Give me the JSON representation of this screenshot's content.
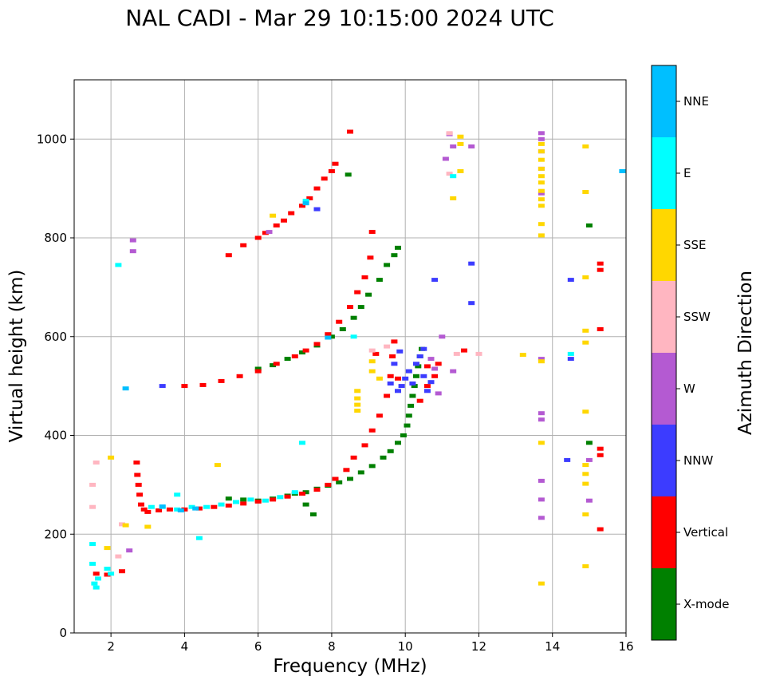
{
  "chart_data": {
    "type": "scatter",
    "title": "NAL CADI - Mar 29 10:15:00 2024 UTC",
    "xlabel": "Frequency (MHz)",
    "ylabel": "Virtual height (km)",
    "xlim": [
      1,
      16
    ],
    "ylim": [
      0,
      1120
    ],
    "xticks": [
      2,
      4,
      6,
      8,
      10,
      12,
      14,
      16
    ],
    "yticks": [
      0,
      200,
      400,
      600,
      800,
      1000
    ],
    "grid": true,
    "colorbar": {
      "label": "Azimuth Direction",
      "categories": [
        {
          "name": "X-mode",
          "color": "#008000"
        },
        {
          "name": "Vertical",
          "color": "#ff0000"
        },
        {
          "name": "NNW",
          "color": "#3c3cff"
        },
        {
          "name": "W",
          "color": "#b45ad2"
        },
        {
          "name": "SSW",
          "color": "#ffb6c1"
        },
        {
          "name": "SSE",
          "color": "#ffd700"
        },
        {
          "name": "E",
          "color": "#00ffff"
        },
        {
          "name": "NNE",
          "color": "#00bfff"
        }
      ]
    },
    "series": [
      {
        "name": "X-mode",
        "points": [
          [
            5.2,
            272
          ],
          [
            5.6,
            270
          ],
          [
            6.0,
            268
          ],
          [
            6.4,
            272
          ],
          [
            6.8,
            278
          ],
          [
            7.0,
            282
          ],
          [
            7.3,
            285
          ],
          [
            7.6,
            292
          ],
          [
            7.9,
            298
          ],
          [
            8.2,
            305
          ],
          [
            8.5,
            312
          ],
          [
            8.8,
            325
          ],
          [
            9.1,
            338
          ],
          [
            9.4,
            355
          ],
          [
            9.6,
            368
          ],
          [
            9.8,
            385
          ],
          [
            9.95,
            400
          ],
          [
            10.05,
            420
          ],
          [
            10.1,
            440
          ],
          [
            10.15,
            460
          ],
          [
            10.2,
            480
          ],
          [
            10.25,
            500
          ],
          [
            10.3,
            520
          ],
          [
            10.35,
            540
          ],
          [
            10.4,
            560
          ],
          [
            10.45,
            575
          ],
          [
            6.0,
            535
          ],
          [
            6.4,
            542
          ],
          [
            6.8,
            555
          ],
          [
            7.2,
            568
          ],
          [
            7.6,
            582
          ],
          [
            8.0,
            600
          ],
          [
            8.3,
            615
          ],
          [
            8.6,
            638
          ],
          [
            8.8,
            660
          ],
          [
            9.0,
            685
          ],
          [
            9.3,
            715
          ],
          [
            9.5,
            745
          ],
          [
            9.7,
            765
          ],
          [
            9.8,
            780
          ],
          [
            8.45,
            928
          ],
          [
            15.0,
            825
          ],
          [
            15.0,
            385
          ],
          [
            7.5,
            240
          ],
          [
            7.3,
            260
          ]
        ]
      },
      {
        "name": "Vertical",
        "points": [
          [
            1.6,
            120
          ],
          [
            1.9,
            118
          ],
          [
            2.3,
            125
          ],
          [
            2.7,
            345
          ],
          [
            2.72,
            320
          ],
          [
            2.75,
            300
          ],
          [
            2.78,
            280
          ],
          [
            2.82,
            260
          ],
          [
            2.9,
            250
          ],
          [
            3.0,
            245
          ],
          [
            3.3,
            248
          ],
          [
            3.6,
            250
          ],
          [
            4.0,
            250
          ],
          [
            4.4,
            252
          ],
          [
            4.8,
            255
          ],
          [
            5.2,
            258
          ],
          [
            5.6,
            262
          ],
          [
            6.0,
            266
          ],
          [
            6.4,
            270
          ],
          [
            6.8,
            276
          ],
          [
            7.2,
            282
          ],
          [
            7.6,
            290
          ],
          [
            7.9,
            300
          ],
          [
            8.1,
            312
          ],
          [
            8.4,
            330
          ],
          [
            8.6,
            355
          ],
          [
            8.9,
            380
          ],
          [
            9.1,
            410
          ],
          [
            9.3,
            440
          ],
          [
            9.5,
            480
          ],
          [
            9.6,
            520
          ],
          [
            9.65,
            560
          ],
          [
            9.7,
            590
          ],
          [
            4.0,
            500
          ],
          [
            4.5,
            502
          ],
          [
            5.0,
            510
          ],
          [
            5.5,
            520
          ],
          [
            6.0,
            530
          ],
          [
            6.5,
            545
          ],
          [
            7.0,
            560
          ],
          [
            7.3,
            572
          ],
          [
            7.6,
            585
          ],
          [
            7.9,
            605
          ],
          [
            8.2,
            630
          ],
          [
            8.5,
            660
          ],
          [
            8.7,
            690
          ],
          [
            8.9,
            720
          ],
          [
            9.05,
            760
          ],
          [
            9.1,
            812
          ],
          [
            5.2,
            765
          ],
          [
            5.6,
            785
          ],
          [
            6.0,
            800
          ],
          [
            6.2,
            810
          ],
          [
            6.5,
            825
          ],
          [
            6.7,
            835
          ],
          [
            6.9,
            850
          ],
          [
            7.2,
            865
          ],
          [
            7.4,
            880
          ],
          [
            7.6,
            900
          ],
          [
            7.8,
            920
          ],
          [
            8.0,
            935
          ],
          [
            8.1,
            950
          ],
          [
            8.5,
            1015
          ],
          [
            15.3,
            748
          ],
          [
            15.3,
            735
          ],
          [
            15.3,
            615
          ],
          [
            15.3,
            373
          ],
          [
            15.3,
            360
          ],
          [
            15.3,
            210
          ],
          [
            11.6,
            572
          ],
          [
            10.9,
            545
          ],
          [
            10.8,
            520
          ],
          [
            10.6,
            500
          ],
          [
            10.4,
            470
          ],
          [
            10.6,
            540
          ],
          [
            9.8,
            515
          ],
          [
            9.2,
            565
          ]
        ]
      },
      {
        "name": "NNW",
        "points": [
          [
            3.4,
            500
          ],
          [
            10.4,
            560
          ],
          [
            10.3,
            545
          ],
          [
            10.1,
            530
          ],
          [
            10.0,
            515
          ],
          [
            9.9,
            500
          ],
          [
            9.8,
            490
          ],
          [
            10.5,
            520
          ],
          [
            10.6,
            490
          ],
          [
            9.6,
            505
          ],
          [
            9.7,
            545
          ],
          [
            9.85,
            570
          ],
          [
            10.7,
            508
          ],
          [
            7.6,
            858
          ],
          [
            11.8,
            748
          ],
          [
            11.8,
            668
          ],
          [
            10.8,
            715
          ],
          [
            14.5,
            715
          ],
          [
            14.5,
            555
          ],
          [
            14.4,
            350
          ],
          [
            10.2,
            505
          ],
          [
            10.5,
            575
          ]
        ]
      },
      {
        "name": "W",
        "points": [
          [
            2.6,
            795
          ],
          [
            2.6,
            773
          ],
          [
            2.5,
            167
          ],
          [
            6.3,
            812
          ],
          [
            10.7,
            555
          ],
          [
            10.8,
            535
          ],
          [
            11.3,
            530
          ],
          [
            10.9,
            485
          ],
          [
            11.0,
            600
          ],
          [
            11.1,
            960
          ],
          [
            11.2,
            1010
          ],
          [
            11.3,
            985
          ],
          [
            11.8,
            985
          ],
          [
            13.7,
            1012
          ],
          [
            13.7,
            1000
          ],
          [
            13.7,
            975
          ],
          [
            13.7,
            940
          ],
          [
            13.7,
            890
          ],
          [
            13.7,
            555
          ],
          [
            13.7,
            445
          ],
          [
            13.7,
            432
          ],
          [
            13.7,
            308
          ],
          [
            13.7,
            270
          ],
          [
            13.7,
            233
          ],
          [
            15.0,
            350
          ],
          [
            15.0,
            268
          ]
        ]
      },
      {
        "name": "SSW",
        "points": [
          [
            1.5,
            300
          ],
          [
            1.5,
            255
          ],
          [
            1.6,
            345
          ],
          [
            9.1,
            572
          ],
          [
            9.5,
            580
          ],
          [
            11.2,
            930
          ],
          [
            11.2,
            1012
          ],
          [
            12.0,
            565
          ],
          [
            11.4,
            565
          ],
          [
            2.2,
            155
          ],
          [
            2.3,
            220
          ]
        ]
      },
      {
        "name": "SSE",
        "points": [
          [
            8.7,
            490
          ],
          [
            8.7,
            475
          ],
          [
            8.7,
            462
          ],
          [
            8.7,
            450
          ],
          [
            9.1,
            550
          ],
          [
            9.1,
            530
          ],
          [
            9.3,
            515
          ],
          [
            11.5,
            1005
          ],
          [
            11.5,
            990
          ],
          [
            11.5,
            935
          ],
          [
            11.3,
            880
          ],
          [
            13.2,
            563
          ],
          [
            13.7,
            990
          ],
          [
            13.7,
            975
          ],
          [
            13.7,
            958
          ],
          [
            13.7,
            940
          ],
          [
            13.7,
            925
          ],
          [
            13.7,
            912
          ],
          [
            13.7,
            895
          ],
          [
            13.7,
            878
          ],
          [
            13.7,
            865
          ],
          [
            13.7,
            828
          ],
          [
            13.7,
            805
          ],
          [
            13.7,
            550
          ],
          [
            13.7,
            385
          ],
          [
            13.7,
            100
          ],
          [
            14.9,
            985
          ],
          [
            14.9,
            893
          ],
          [
            14.9,
            720
          ],
          [
            14.9,
            612
          ],
          [
            14.9,
            588
          ],
          [
            14.9,
            448
          ],
          [
            14.9,
            340
          ],
          [
            14.9,
            322
          ],
          [
            14.9,
            302
          ],
          [
            14.9,
            240
          ],
          [
            14.9,
            135
          ],
          [
            4.9,
            340
          ],
          [
            6.4,
            845
          ],
          [
            3.0,
            215
          ],
          [
            2.0,
            355
          ],
          [
            1.9,
            172
          ],
          [
            2.4,
            218
          ]
        ]
      },
      {
        "name": "E",
        "points": [
          [
            1.5,
            140
          ],
          [
            1.55,
            100
          ],
          [
            1.6,
            92
          ],
          [
            1.65,
            110
          ],
          [
            1.9,
            130
          ],
          [
            2.0,
            120
          ],
          [
            2.2,
            745
          ],
          [
            3.1,
            255
          ],
          [
            3.4,
            255
          ],
          [
            3.8,
            250
          ],
          [
            4.2,
            255
          ],
          [
            4.6,
            255
          ],
          [
            5.0,
            260
          ],
          [
            5.4,
            265
          ],
          [
            5.8,
            270
          ],
          [
            6.2,
            268
          ],
          [
            6.6,
            275
          ],
          [
            7.0,
            285
          ],
          [
            7.2,
            385
          ],
          [
            7.3,
            875
          ],
          [
            8.6,
            600
          ],
          [
            11.3,
            925
          ],
          [
            14.5,
            565
          ],
          [
            4.4,
            192
          ],
          [
            3.8,
            280
          ],
          [
            1.5,
            180
          ]
        ]
      },
      {
        "name": "NNE",
        "points": [
          [
            15.9,
            935
          ],
          [
            2.4,
            495
          ],
          [
            7.3,
            870
          ],
          [
            3.9,
            248
          ],
          [
            4.3,
            252
          ],
          [
            7.9,
            598
          ],
          [
            3.4,
            256
          ]
        ]
      }
    ]
  }
}
